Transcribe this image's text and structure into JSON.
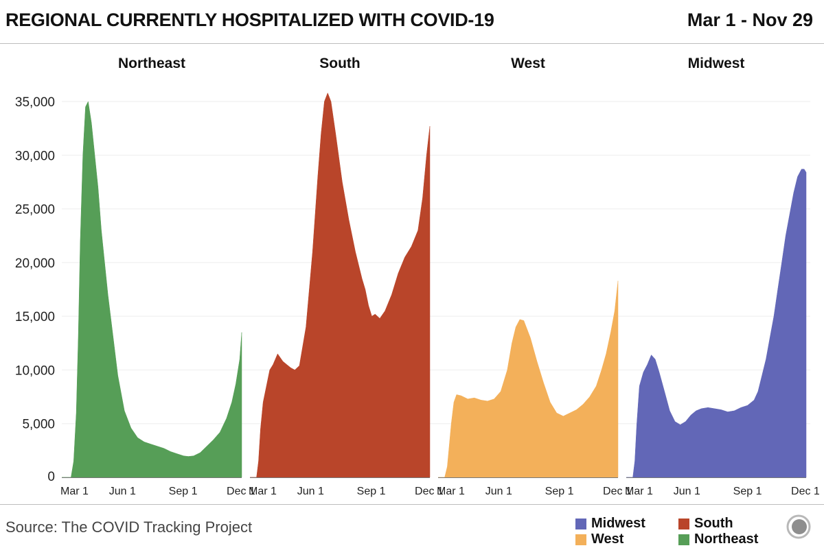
{
  "header": {
    "title": "REGIONAL CURRENTLY HOSPITALIZED WITH COVID-19",
    "date_range": "Mar 1 - Nov 29"
  },
  "footer": {
    "source": "Source: The COVID Tracking Project"
  },
  "legend": [
    {
      "name": "Midwest",
      "color": "#6267b7"
    },
    {
      "name": "South",
      "color": "#b9452a"
    },
    {
      "name": "West",
      "color": "#f3b05a"
    },
    {
      "name": "Northeast",
      "color": "#569e57"
    }
  ],
  "chart_data": {
    "type": "area",
    "title": "REGIONAL CURRENTLY HOSPITALIZED WITH COVID-19",
    "xlabel": "",
    "ylabel": "",
    "ylim": [
      0,
      36000
    ],
    "yticks": [
      0,
      5000,
      10000,
      15000,
      20000,
      25000,
      30000,
      35000
    ],
    "ytick_labels": [
      "0",
      "5,000",
      "10,000",
      "15,000",
      "20,000",
      "25,000",
      "30,000",
      "35,000"
    ],
    "x_tick_labels": [
      "Mar 1",
      "Jun 1",
      "Sep 1",
      "Dec 1"
    ],
    "x_tick_days": [
      0,
      92,
      184,
      275
    ],
    "x_range_days": [
      0,
      273
    ],
    "series": [
      {
        "name": "Northeast",
        "color": "#569e57",
        "x": [
          0,
          14,
          18,
          22,
          25,
          28,
          32,
          36,
          40,
          45,
          50,
          55,
          60,
          65,
          70,
          78,
          85,
          95,
          105,
          115,
          125,
          135,
          145,
          155,
          165,
          175,
          185,
          192,
          200,
          210,
          220,
          230,
          240,
          250,
          258,
          264,
          270,
          273
        ],
        "values": [
          0,
          0,
          1500,
          6000,
          13000,
          22000,
          30000,
          34500,
          35000,
          33000,
          30000,
          27000,
          23000,
          20000,
          17000,
          13000,
          9500,
          6200,
          4600,
          3700,
          3300,
          3100,
          2900,
          2700,
          2400,
          2200,
          2000,
          1950,
          2000,
          2300,
          2900,
          3500,
          4200,
          5500,
          7000,
          8700,
          11000,
          13500
        ]
      },
      {
        "name": "South",
        "color": "#b9452a",
        "x": [
          0,
          10,
          13,
          16,
          20,
          25,
          30,
          35,
          42,
          50,
          56,
          62,
          68,
          75,
          85,
          95,
          103,
          108,
          113,
          118,
          123,
          130,
          140,
          150,
          160,
          170,
          175,
          180,
          185,
          190,
          197,
          205,
          215,
          225,
          235,
          245,
          255,
          262,
          268,
          273
        ],
        "values": [
          0,
          0,
          1500,
          4500,
          7000,
          8500,
          10000,
          10500,
          11500,
          10800,
          10500,
          10200,
          10000,
          10400,
          14000,
          21000,
          28000,
          32000,
          35000,
          35800,
          35000,
          32000,
          27500,
          24000,
          21000,
          18500,
          17500,
          16000,
          15000,
          15200,
          14800,
          15500,
          17000,
          19000,
          20500,
          21500,
          23000,
          26000,
          30000,
          32700
        ]
      },
      {
        "name": "West",
        "color": "#f3b05a",
        "x": [
          0,
          10,
          14,
          17,
          20,
          24,
          28,
          35,
          45,
          55,
          65,
          75,
          85,
          95,
          105,
          112,
          118,
          124,
          130,
          140,
          150,
          160,
          170,
          180,
          190,
          200,
          210,
          220,
          230,
          240,
          248,
          255,
          262,
          268,
          273
        ],
        "values": [
          0,
          0,
          1000,
          3000,
          5000,
          7000,
          7700,
          7600,
          7300,
          7400,
          7200,
          7100,
          7300,
          8000,
          10000,
          12500,
          14000,
          14700,
          14600,
          13000,
          10800,
          8800,
          7000,
          6000,
          5700,
          6000,
          6300,
          6800,
          7500,
          8500,
          10000,
          11500,
          13500,
          15500,
          18300
        ]
      },
      {
        "name": "Midwest",
        "color": "#6267b7",
        "x": [
          0,
          10,
          13,
          16,
          20,
          26,
          32,
          38,
          44,
          50,
          58,
          66,
          74,
          82,
          90,
          98,
          106,
          114,
          124,
          134,
          144,
          154,
          164,
          174,
          184,
          194,
          200,
          206,
          212,
          218,
          224,
          230,
          236,
          242,
          248,
          254,
          260,
          266,
          270,
          273
        ],
        "values": [
          0,
          0,
          1500,
          5000,
          8500,
          9800,
          10500,
          11400,
          11000,
          9800,
          8000,
          6200,
          5200,
          4900,
          5200,
          5800,
          6200,
          6400,
          6500,
          6400,
          6300,
          6100,
          6200,
          6500,
          6700,
          7200,
          8000,
          9500,
          11000,
          13000,
          15000,
          17500,
          20000,
          22500,
          24500,
          26500,
          28000,
          28700,
          28700,
          28400
        ]
      }
    ]
  }
}
